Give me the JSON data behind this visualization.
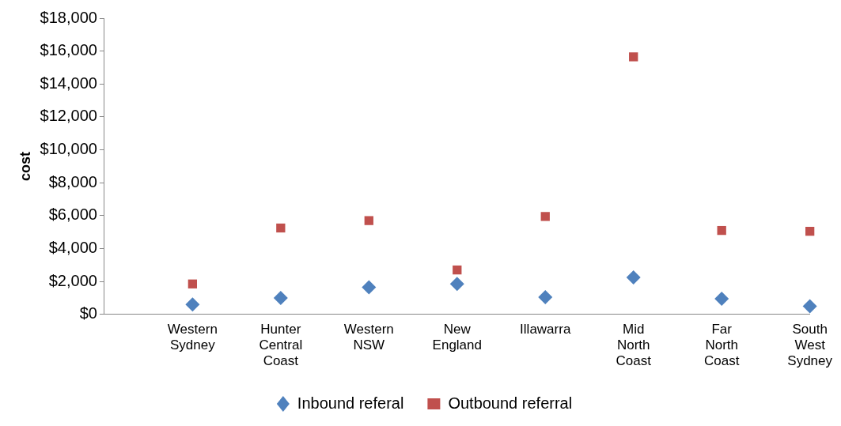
{
  "chart_data": {
    "type": "scatter",
    "ylabel": "cost",
    "categories": [
      null,
      "Western Sydney",
      "Hunter Central Coast",
      "Western NSW",
      "New England",
      "Illawarra",
      "Mid North Coast",
      "Far North Coast",
      "South West Sydney"
    ],
    "series": [
      {
        "name": "Inbound referal",
        "color": "#4f81bd",
        "marker": "diamond",
        "values": [
          null,
          600,
          1000,
          1650,
          1850,
          1050,
          2250,
          950,
          500
        ]
      },
      {
        "name": "Outbound referral",
        "color": "#c0504d",
        "marker": "square",
        "values": [
          null,
          1850,
          5250,
          5700,
          2700,
          5950,
          15650,
          5100,
          5050
        ]
      }
    ],
    "ylim": [
      0,
      18000
    ],
    "yticks": [
      {
        "value": 0,
        "label": "$0"
      },
      {
        "value": 2000,
        "label": "$2,000"
      },
      {
        "value": 4000,
        "label": "$4,000"
      },
      {
        "value": 6000,
        "label": "$6,000"
      },
      {
        "value": 8000,
        "label": "$8,000"
      },
      {
        "value": 10000,
        "label": "$10,000"
      },
      {
        "value": 12000,
        "label": "$12,000"
      },
      {
        "value": 14000,
        "label": "$14,000"
      },
      {
        "value": 16000,
        "label": "$16,000"
      },
      {
        "value": 18000,
        "label": "$18,000"
      }
    ],
    "grid": false,
    "legend": "bottom"
  }
}
